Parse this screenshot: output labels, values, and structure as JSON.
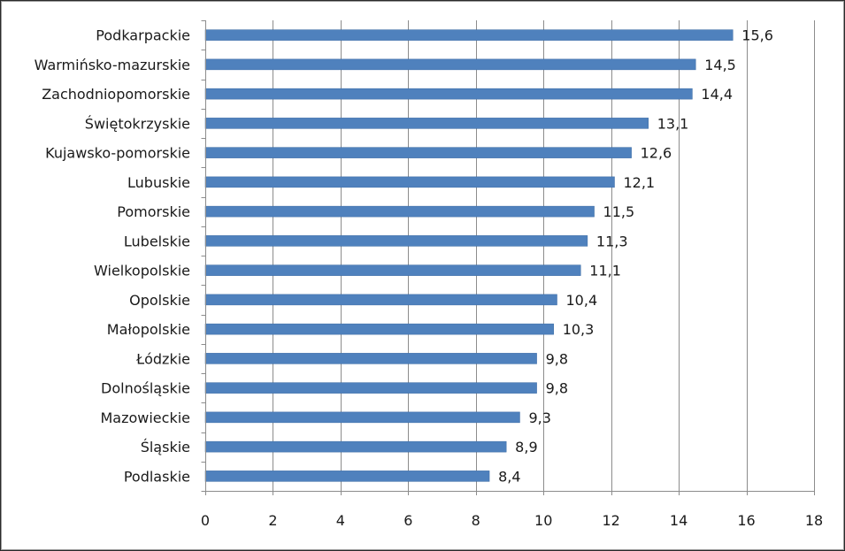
{
  "chart_data": {
    "type": "bar",
    "orientation": "horizontal",
    "categories": [
      "Podkarpackie",
      "Warmińsko-mazurskie",
      "Zachodniopomorskie",
      "Świętokrzyskie",
      "Kujawsko-pomorskie",
      "Lubuskie",
      "Pomorskie",
      "Lubelskie",
      "Wielkopolskie",
      "Opolskie",
      "Małopolskie",
      "Łódzkie",
      "Dolnośląskie",
      "Mazowieckie",
      "Śląskie",
      "Podlaskie"
    ],
    "values": [
      15.6,
      14.5,
      14.4,
      13.1,
      12.6,
      12.1,
      11.5,
      11.3,
      11.1,
      10.4,
      10.3,
      9.8,
      9.8,
      9.3,
      8.9,
      8.4
    ],
    "value_labels": [
      "15,6",
      "14,5",
      "14,4",
      "13,1",
      "12,6",
      "12,1",
      "11,5",
      "11,3",
      "11,1",
      "10,4",
      "10,3",
      "9,8",
      "9,8",
      "9,3",
      "8,9",
      "8,4"
    ],
    "xlim": [
      0,
      18
    ],
    "x_ticks": [
      0,
      2,
      4,
      6,
      8,
      10,
      12,
      14,
      16,
      18
    ],
    "grid": "vertical",
    "legend": "none",
    "bar_color": "#4f81bd",
    "bar_edge_color": "#3a6aa3",
    "grid_color": "#8c8c8c"
  }
}
